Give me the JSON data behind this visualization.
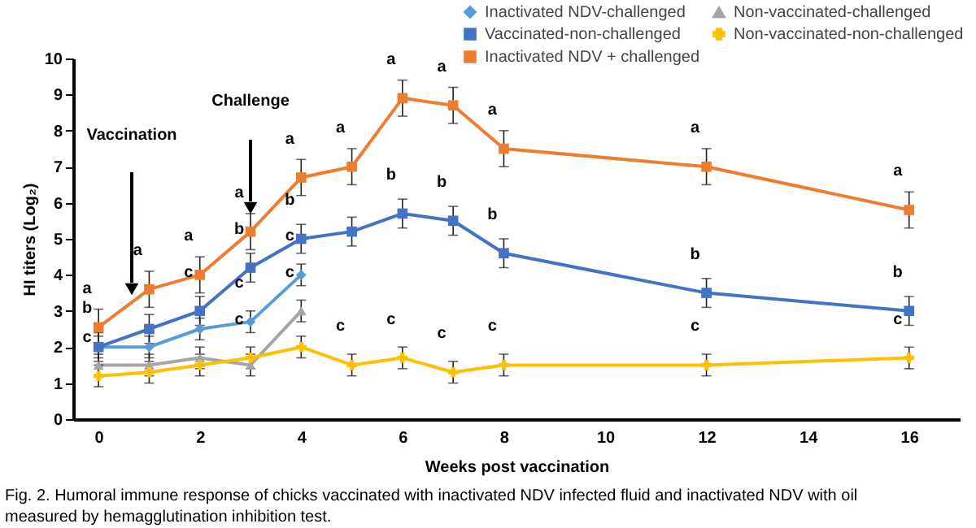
{
  "chart_data": {
    "type": "line",
    "xlabel": "Weeks post vaccination",
    "ylabel": "HI titers (Log₂)",
    "xlim": [
      -0.5,
      17
    ],
    "xticks": [
      0,
      2,
      4,
      6,
      8,
      10,
      12,
      14,
      16
    ],
    "ylim": [
      0,
      10
    ],
    "yticks": [
      0,
      1,
      2,
      3,
      4,
      5,
      6,
      7,
      8,
      9,
      10
    ],
    "grid": false,
    "legend": "top right",
    "line_style": "solid",
    "series": [
      {
        "name": "Inactivated NDV-challenged",
        "color": "#5b9bd5",
        "marker": "diamond",
        "x": [
          0,
          1,
          2,
          3,
          4
        ],
        "values": [
          2.0,
          2.0,
          2.5,
          2.7,
          4.0
        ],
        "errors": [
          0.3,
          0.3,
          0.3,
          0.3,
          0.3
        ]
      },
      {
        "name": "Non-vaccinated-challenged",
        "color": "#a5a5a5",
        "marker": "triangle",
        "x": [
          0,
          1,
          2,
          3,
          4
        ],
        "values": [
          1.5,
          1.5,
          1.7,
          1.5,
          3.0
        ],
        "errors": [
          0.3,
          0.3,
          0.3,
          0.3,
          0.3
        ]
      },
      {
        "name": "Vaccinated-non-challenged",
        "color": "#4472c4",
        "marker": "square",
        "x": [
          0,
          1,
          2,
          3,
          4,
          5,
          6,
          7,
          8,
          12,
          16
        ],
        "values": [
          2.0,
          2.5,
          3.0,
          4.2,
          5.0,
          5.2,
          5.7,
          5.5,
          4.6,
          3.5,
          3.0
        ],
        "errors": [
          0.4,
          0.4,
          0.4,
          0.4,
          0.4,
          0.4,
          0.4,
          0.4,
          0.4,
          0.4,
          0.4
        ]
      },
      {
        "name": "Non-vaccinated-non-challenged",
        "color": "#ffc000",
        "marker": "cross",
        "x": [
          0,
          1,
          2,
          3,
          4,
          5,
          6,
          7,
          8,
          12,
          16
        ],
        "values": [
          1.2,
          1.3,
          1.5,
          1.7,
          2.0,
          1.5,
          1.7,
          1.3,
          1.5,
          1.5,
          1.7
        ],
        "errors": [
          0.3,
          0.3,
          0.3,
          0.3,
          0.3,
          0.3,
          0.3,
          0.3,
          0.3,
          0.3,
          0.3
        ]
      },
      {
        "name": "Inactivated NDV + challenged",
        "color": "#ed7d31",
        "marker": "square",
        "x": [
          0,
          1,
          2,
          3,
          4,
          5,
          6,
          7,
          8,
          12,
          16
        ],
        "values": [
          2.55,
          3.6,
          4.0,
          5.2,
          6.7,
          7.0,
          8.9,
          8.7,
          7.5,
          7.0,
          5.8
        ],
        "errors": [
          0.5,
          0.5,
          0.5,
          0.5,
          0.5,
          0.5,
          0.5,
          0.5,
          0.5,
          0.5,
          0.5
        ]
      }
    ],
    "annotations": [
      "Vaccination",
      "Challenge",
      "Fig. 2. Humoral immune response of chicks vaccinated with inactivated NDV infected fluid and inactivated NDV with oil measured by hemagglutination inhibition test.",
      {
        "text": "a",
        "x": 0,
        "y": 2.55
      },
      {
        "text": "a",
        "x": 1,
        "y": 3.6
      },
      {
        "text": "a",
        "x": 2,
        "y": 4.0
      },
      {
        "text": "a",
        "x": 3,
        "y": 5.2
      },
      {
        "text": "a",
        "x": 4,
        "y": 6.7
      },
      {
        "text": "a",
        "x": 5,
        "y": 7.0
      },
      {
        "text": "a",
        "x": 6,
        "y": 8.9
      },
      {
        "text": "a",
        "x": 7,
        "y": 8.7
      },
      {
        "text": "a",
        "x": 8,
        "y": 7.5
      },
      {
        "text": "a",
        "x": 12,
        "y": 7.0
      },
      {
        "text": "a",
        "x": 16,
        "y": 5.8
      },
      {
        "text": "b",
        "x": 0,
        "y": 2.0
      },
      {
        "text": "b",
        "x": 3,
        "y": 4.2
      },
      {
        "text": "b",
        "x": 4,
        "y": 5.0
      },
      {
        "text": "b",
        "x": 6,
        "y": 5.7
      },
      {
        "text": "b",
        "x": 7,
        "y": 5.5
      },
      {
        "text": "b",
        "x": 8,
        "y": 4.6
      },
      {
        "text": "b",
        "x": 12,
        "y": 3.5
      },
      {
        "text": "b",
        "x": 16,
        "y": 3.0
      },
      {
        "text": "c",
        "x": 0,
        "y": 1.2
      },
      {
        "text": "c",
        "x": 2,
        "y": 3.0
      },
      {
        "text": "c",
        "x": 3,
        "y": 2.7
      },
      {
        "text": "c",
        "x": 4,
        "y": 4.0
      },
      {
        "text": "c",
        "x": 4,
        "y": 3.0
      },
      {
        "text": "c",
        "x": 3,
        "y": 1.7
      },
      {
        "text": "c",
        "x": 5,
        "y": 1.5
      },
      {
        "text": "c",
        "x": 6,
        "y": 1.7
      },
      {
        "text": "c",
        "x": 7,
        "y": 1.3
      },
      {
        "text": "c",
        "x": 8,
        "y": 1.5
      },
      {
        "text": "c",
        "x": 12,
        "y": 1.5
      },
      {
        "text": "c",
        "x": 16,
        "y": 1.7
      }
    ]
  }
}
